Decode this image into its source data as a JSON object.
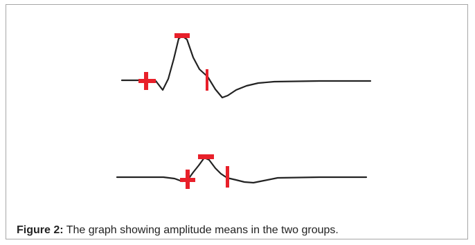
{
  "caption": {
    "label": "Figure 2:",
    "text": " The graph showing amplitude means in the two groups."
  },
  "colors": {
    "trace": "#222222",
    "marker": "#e8202a",
    "border": "#a6a6a6"
  }
}
